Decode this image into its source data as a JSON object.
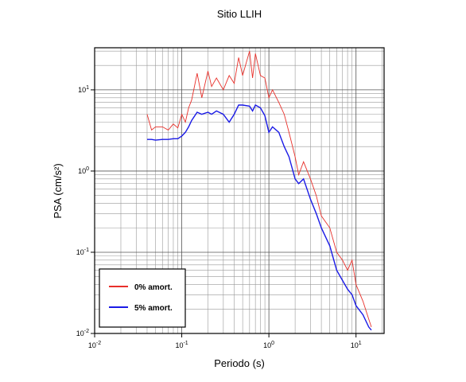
{
  "chart_data": {
    "type": "line",
    "title": "Sitio LLIH",
    "x_label": "Periodo (s)",
    "y_label": "PSA (cm/s²)",
    "log_x": true,
    "log_y": true,
    "grid": true,
    "minor_grid": true,
    "legend": "lower left",
    "xlim": [
      0.01,
      21
    ],
    "ylim": [
      0.01,
      33
    ],
    "xticks": [
      {
        "value": 0.01,
        "label": "10",
        "exponent": "-2"
      },
      {
        "value": 0.1,
        "label": "10",
        "exponent": "-1"
      },
      {
        "value": 1,
        "label": "10",
        "exponent": "0"
      },
      {
        "value": 10,
        "label": "10",
        "exponent": "1"
      }
    ],
    "yticks": [
      {
        "value": 0.01,
        "label": "10",
        "exponent": "-2"
      },
      {
        "value": 0.1,
        "label": "10",
        "exponent": "-1"
      },
      {
        "value": 1,
        "label": "10",
        "exponent": "0"
      },
      {
        "value": 10,
        "label": "10",
        "exponent": "1"
      }
    ],
    "x": [
      0.04,
      0.045,
      0.05,
      0.06,
      0.07,
      0.08,
      0.09,
      0.1,
      0.11,
      0.12,
      0.13,
      0.15,
      0.17,
      0.2,
      0.22,
      0.25,
      0.3,
      0.35,
      0.4,
      0.45,
      0.5,
      0.6,
      0.65,
      0.7,
      0.8,
      0.9,
      1.0,
      1.1,
      1.3,
      1.5,
      1.7,
      2.0,
      2.2,
      2.5,
      3.0,
      3.5,
      4.0,
      5,
      6,
      7,
      8,
      9,
      10,
      12,
      14,
      15
    ],
    "series": [
      {
        "name": "0% amort.",
        "color": "#e8302a",
        "values": [
          5.0,
          3.2,
          3.5,
          3.5,
          3.2,
          3.8,
          3.4,
          5.0,
          4.0,
          6.0,
          7.5,
          16,
          8,
          17,
          11,
          14,
          10,
          15,
          12,
          25,
          15,
          30,
          14,
          28,
          15,
          14,
          8,
          10,
          7,
          5,
          3,
          1.5,
          0.9,
          1.3,
          0.8,
          0.5,
          0.28,
          0.2,
          0.1,
          0.08,
          0.06,
          0.08,
          0.04,
          0.025,
          0.015,
          0.012
        ]
      },
      {
        "name": "5% amort.",
        "color": "#1a1ae6",
        "values": [
          2.45,
          2.45,
          2.4,
          2.45,
          2.45,
          2.5,
          2.5,
          2.7,
          3.0,
          3.5,
          4.2,
          5.3,
          5.0,
          5.3,
          5.0,
          5.5,
          5.0,
          4.0,
          5.0,
          6.5,
          6.5,
          6.3,
          5.5,
          6.5,
          6.0,
          4.8,
          3.0,
          3.5,
          3.0,
          2.0,
          1.5,
          0.8,
          0.7,
          0.8,
          0.45,
          0.3,
          0.2,
          0.12,
          0.06,
          0.045,
          0.035,
          0.03,
          0.022,
          0.017,
          0.012,
          0.011
        ]
      }
    ]
  }
}
